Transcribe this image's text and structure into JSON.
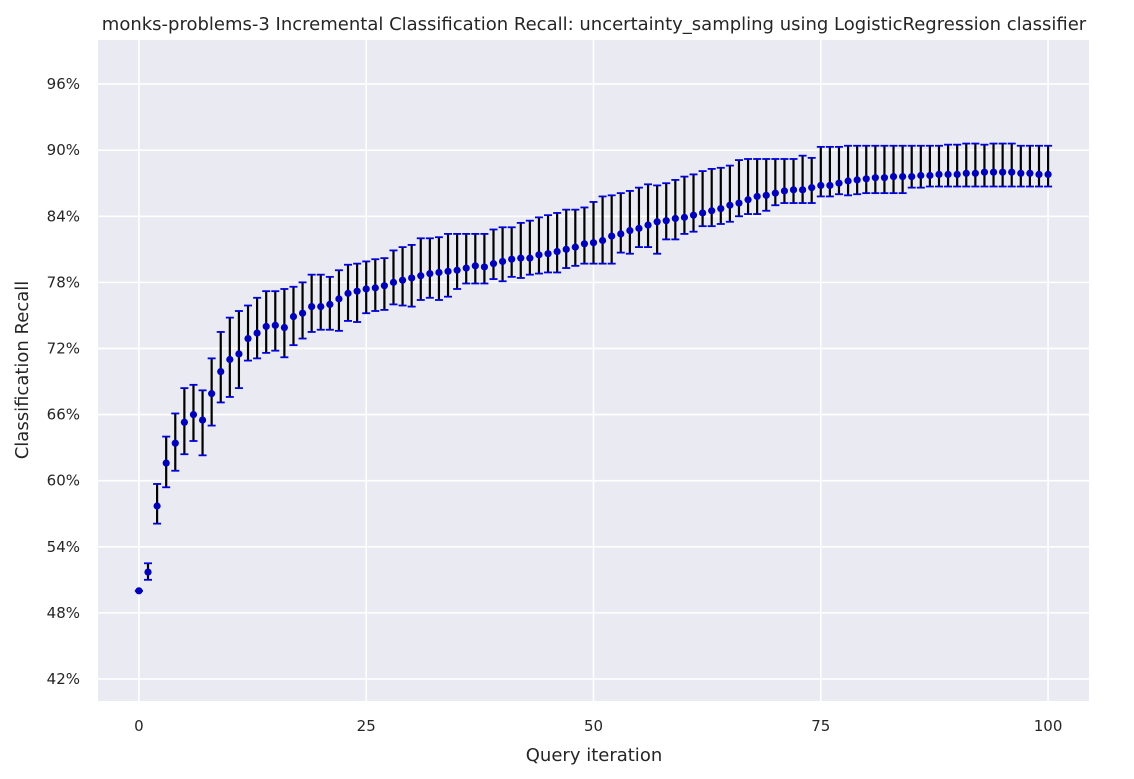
{
  "chart_data": {
    "type": "scatter",
    "title": "monks-problems-3 Incremental Classification Recall: uncertainty_sampling using LogisticRegression classifier",
    "xlabel": "Query iteration",
    "ylabel": "Classification Recall",
    "xlim": [
      -4.5,
      104.5
    ],
    "ylim": [
      0.4,
      1.0
    ],
    "x_ticks": [
      0,
      25,
      50,
      75,
      100
    ],
    "x_tick_labels": [
      "0",
      "25",
      "50",
      "75",
      "100"
    ],
    "y_ticks": [
      0.42,
      0.48,
      0.54,
      0.6,
      0.66,
      0.72,
      0.78,
      0.84,
      0.9,
      0.96
    ],
    "y_tick_labels": [
      "42%",
      "48%",
      "54%",
      "60%",
      "66%",
      "72%",
      "78%",
      "84%",
      "90%",
      "96%"
    ],
    "grid": true,
    "background_color": "#eaeaf2",
    "grid_color": "#ffffff",
    "marker_color": "#0000bb",
    "errorbar_color": "#000000",
    "errorcap_color": "#0000dd",
    "series": [
      {
        "x": [
          0,
          1,
          2,
          3,
          4,
          5,
          6,
          7,
          8,
          9,
          10,
          11,
          12,
          13,
          14,
          15,
          16,
          17,
          18,
          19,
          20,
          21,
          22,
          23,
          24,
          25,
          26,
          27,
          28,
          29,
          30,
          31,
          32,
          33,
          34,
          35,
          36,
          37,
          38,
          39,
          40,
          41,
          42,
          43,
          44,
          45,
          46,
          47,
          48,
          49,
          50,
          51,
          52,
          53,
          54,
          55,
          56,
          57,
          58,
          59,
          60,
          61,
          62,
          63,
          64,
          65,
          66,
          67,
          68,
          69,
          70,
          71,
          72,
          73,
          74,
          75,
          76,
          77,
          78,
          79,
          80,
          81,
          82,
          83,
          84,
          85,
          86,
          87,
          88,
          89,
          90,
          91,
          92,
          93,
          94,
          95,
          96,
          97,
          98,
          99,
          100
        ],
        "y": [
          0.5,
          0.517,
          0.577,
          0.616,
          0.634,
          0.653,
          0.66,
          0.655,
          0.679,
          0.699,
          0.71,
          0.715,
          0.729,
          0.734,
          0.74,
          0.741,
          0.739,
          0.749,
          0.752,
          0.758,
          0.758,
          0.76,
          0.765,
          0.77,
          0.772,
          0.774,
          0.775,
          0.777,
          0.78,
          0.782,
          0.784,
          0.786,
          0.788,
          0.789,
          0.79,
          0.791,
          0.793,
          0.795,
          0.794,
          0.797,
          0.799,
          0.801,
          0.802,
          0.802,
          0.805,
          0.806,
          0.808,
          0.81,
          0.812,
          0.815,
          0.816,
          0.818,
          0.822,
          0.824,
          0.827,
          0.829,
          0.832,
          0.835,
          0.836,
          0.838,
          0.839,
          0.841,
          0.843,
          0.845,
          0.847,
          0.85,
          0.852,
          0.855,
          0.858,
          0.859,
          0.861,
          0.863,
          0.864,
          0.864,
          0.866,
          0.868,
          0.868,
          0.87,
          0.872,
          0.873,
          0.874,
          0.875,
          0.875,
          0.876,
          0.876,
          0.876,
          0.877,
          0.877,
          0.878,
          0.878,
          0.878,
          0.879,
          0.879,
          0.88,
          0.88,
          0.88,
          0.88,
          0.879,
          0.879,
          0.878,
          0.878
        ],
        "err_low": [
          0.5,
          0.51,
          0.561,
          0.594,
          0.609,
          0.624,
          0.636,
          0.623,
          0.65,
          0.671,
          0.676,
          0.684,
          0.709,
          0.711,
          0.716,
          0.718,
          0.712,
          0.723,
          0.729,
          0.735,
          0.737,
          0.737,
          0.736,
          0.745,
          0.744,
          0.752,
          0.754,
          0.755,
          0.76,
          0.759,
          0.758,
          0.764,
          0.766,
          0.764,
          0.767,
          0.774,
          0.779,
          0.779,
          0.779,
          0.783,
          0.781,
          0.785,
          0.784,
          0.787,
          0.788,
          0.789,
          0.789,
          0.793,
          0.795,
          0.797,
          0.797,
          0.797,
          0.797,
          0.807,
          0.806,
          0.812,
          0.812,
          0.806,
          0.819,
          0.819,
          0.824,
          0.826,
          0.831,
          0.831,
          0.833,
          0.835,
          0.84,
          0.842,
          0.842,
          0.845,
          0.85,
          0.852,
          0.852,
          0.852,
          0.852,
          0.858,
          0.858,
          0.86,
          0.859,
          0.86,
          0.861,
          0.861,
          0.861,
          0.861,
          0.861,
          0.866,
          0.866,
          0.867,
          0.867,
          0.867,
          0.867,
          0.867,
          0.867,
          0.867,
          0.867,
          0.867,
          0.867,
          0.867,
          0.867,
          0.867,
          0.867
        ],
        "err_high": [
          0.5,
          0.525,
          0.597,
          0.64,
          0.661,
          0.684,
          0.687,
          0.682,
          0.711,
          0.735,
          0.748,
          0.754,
          0.759,
          0.766,
          0.772,
          0.772,
          0.774,
          0.776,
          0.78,
          0.787,
          0.787,
          0.785,
          0.791,
          0.796,
          0.797,
          0.799,
          0.801,
          0.802,
          0.809,
          0.812,
          0.814,
          0.82,
          0.82,
          0.821,
          0.824,
          0.824,
          0.824,
          0.824,
          0.824,
          0.828,
          0.83,
          0.83,
          0.834,
          0.836,
          0.839,
          0.841,
          0.843,
          0.846,
          0.846,
          0.848,
          0.853,
          0.858,
          0.859,
          0.861,
          0.863,
          0.866,
          0.869,
          0.868,
          0.87,
          0.873,
          0.876,
          0.878,
          0.881,
          0.883,
          0.884,
          0.886,
          0.891,
          0.892,
          0.892,
          0.892,
          0.892,
          0.892,
          0.892,
          0.895,
          0.893,
          0.903,
          0.903,
          0.903,
          0.904,
          0.904,
          0.904,
          0.904,
          0.904,
          0.904,
          0.904,
          0.904,
          0.904,
          0.904,
          0.904,
          0.905,
          0.905,
          0.906,
          0.906,
          0.905,
          0.906,
          0.906,
          0.906,
          0.904,
          0.904,
          0.904,
          0.904
        ]
      }
    ]
  }
}
